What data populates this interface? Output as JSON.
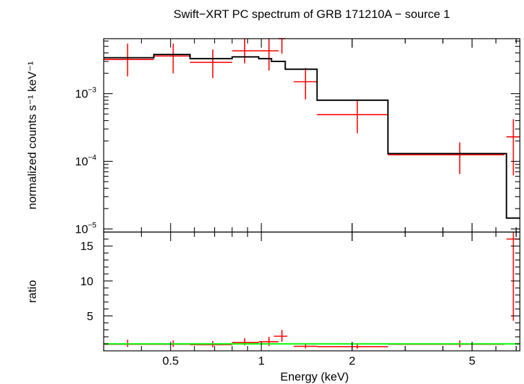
{
  "chart_data": {
    "type": "line",
    "title": "Swift−XRT PC spectrum of GRB 171210A − source 1",
    "xlabel": "Energy (keV)",
    "x_scale": "log",
    "xlim": [
      0.3,
      7.2
    ],
    "x_ticks": [
      {
        "value": 0.5,
        "label": "0.5"
      },
      {
        "value": 1,
        "label": "1"
      },
      {
        "value": 2,
        "label": "2"
      },
      {
        "value": 5,
        "label": "5"
      }
    ],
    "panels": {
      "top": {
        "ylabel": "normalized counts s⁻¹ keV⁻¹",
        "y_scale": "log",
        "ylim": [
          9e-06,
          0.0065
        ],
        "y_ticks": [
          {
            "value": 0.001,
            "base": "10",
            "exp": "−3"
          },
          {
            "value": 0.0001,
            "base": "10",
            "exp": "−4"
          },
          {
            "value": 1e-05,
            "base": "10",
            "exp": "−5"
          }
        ],
        "series": [
          {
            "name": "data",
            "color": "#ff0000",
            "kind": "crosses",
            "points": [
              {
                "x": 0.36,
                "xlo": 0.3,
                "xhi": 0.44,
                "y": 0.0032,
                "ylo": 0.0018,
                "yhi": 0.0055
              },
              {
                "x": 0.51,
                "xlo": 0.44,
                "xhi": 0.58,
                "y": 0.0036,
                "ylo": 0.002,
                "yhi": 0.0055
              },
              {
                "x": 0.69,
                "xlo": 0.58,
                "xhi": 0.8,
                "y": 0.0029,
                "ylo": 0.0017,
                "yhi": 0.0045
              },
              {
                "x": 0.88,
                "xlo": 0.8,
                "xhi": 0.98,
                "y": 0.0043,
                "ylo": 0.0028,
                "yhi": 0.0065
              },
              {
                "x": 1.06,
                "xlo": 0.98,
                "xhi": 1.14,
                "y": 0.0043,
                "ylo": 0.0022,
                "yhi": 0.0065
              },
              {
                "x": 1.17,
                "xlo": 1.14,
                "xhi": 1.2,
                "y": 0.0065,
                "ylo": 0.0039,
                "yhi": 0.0065
              },
              {
                "x": 1.4,
                "xlo": 1.28,
                "xhi": 1.53,
                "y": 0.0015,
                "ylo": 0.00082,
                "yhi": 0.0024
              },
              {
                "x": 2.08,
                "xlo": 1.53,
                "xhi": 2.63,
                "y": 0.00049,
                "ylo": 0.00026,
                "yhi": 0.0008
              },
              {
                "x": 4.55,
                "xlo": 2.63,
                "xhi": 6.4,
                "y": 0.000125,
                "ylo": 6.5e-05,
                "yhi": 0.00019
              },
              {
                "x": 6.85,
                "xlo": 6.5,
                "xhi": 7.2,
                "y": 0.00023,
                "ylo": 6.2e-05,
                "yhi": 0.00042
              }
            ]
          },
          {
            "name": "model",
            "color": "#000000",
            "kind": "step",
            "steps": [
              {
                "x0": 0.3,
                "x1": 0.44,
                "y": 0.0034
              },
              {
                "x0": 0.44,
                "x1": 0.58,
                "y": 0.0038
              },
              {
                "x0": 0.58,
                "x1": 0.8,
                "y": 0.0033
              },
              {
                "x0": 0.8,
                "x1": 0.98,
                "y": 0.0035
              },
              {
                "x0": 0.98,
                "x1": 1.08,
                "y": 0.0033
              },
              {
                "x0": 1.08,
                "x1": 1.2,
                "y": 0.003
              },
              {
                "x0": 1.2,
                "x1": 1.53,
                "y": 0.0023
              },
              {
                "x0": 1.53,
                "x1": 2.63,
                "y": 0.0008
              },
              {
                "x0": 2.63,
                "x1": 6.5,
                "y": 0.00013
              },
              {
                "x0": 6.5,
                "x1": 7.2,
                "y": 1.45e-05
              }
            ]
          }
        ]
      },
      "bottom": {
        "ylabel": "ratio",
        "y_scale": "linear",
        "ylim": [
          0,
          17
        ],
        "y_ticks": [
          {
            "value": 5,
            "label": "5"
          },
          {
            "value": 10,
            "label": "10"
          },
          {
            "value": 15,
            "label": "15"
          }
        ],
        "series": [
          {
            "name": "ratio",
            "color": "#ff0000",
            "kind": "crosses",
            "points": [
              {
                "x": 0.36,
                "xlo": 0.3,
                "xhi": 0.44,
                "y": 0.95,
                "ylo": 0.55,
                "yhi": 1.6
              },
              {
                "x": 0.51,
                "xlo": 0.44,
                "xhi": 0.58,
                "y": 0.95,
                "ylo": 0.55,
                "yhi": 1.5
              },
              {
                "x": 0.69,
                "xlo": 0.58,
                "xhi": 0.8,
                "y": 0.9,
                "ylo": 0.5,
                "yhi": 1.4
              },
              {
                "x": 0.88,
                "xlo": 0.8,
                "xhi": 0.98,
                "y": 1.2,
                "ylo": 0.8,
                "yhi": 1.8
              },
              {
                "x": 1.06,
                "xlo": 0.98,
                "xhi": 1.14,
                "y": 1.3,
                "ylo": 0.7,
                "yhi": 2.0
              },
              {
                "x": 1.17,
                "xlo": 1.1,
                "xhi": 1.22,
                "y": 2.1,
                "ylo": 1.3,
                "yhi": 3.0
              },
              {
                "x": 1.4,
                "xlo": 1.28,
                "xhi": 1.53,
                "y": 0.65,
                "ylo": 0.35,
                "yhi": 1.0
              },
              {
                "x": 2.08,
                "xlo": 1.53,
                "xhi": 2.63,
                "y": 0.6,
                "ylo": 0.3,
                "yhi": 1.0
              },
              {
                "x": 4.55,
                "xlo": 2.63,
                "xhi": 6.4,
                "y": 0.95,
                "ylo": 0.5,
                "yhi": 1.5
              },
              {
                "x": 6.85,
                "xlo": 6.5,
                "xhi": 7.2,
                "y": 16.0,
                "ylo": 4.3,
                "yhi": 17.0
              }
            ]
          },
          {
            "name": "unity",
            "color": "#00ff00",
            "kind": "hline",
            "y": 1.0
          }
        ]
      }
    }
  }
}
